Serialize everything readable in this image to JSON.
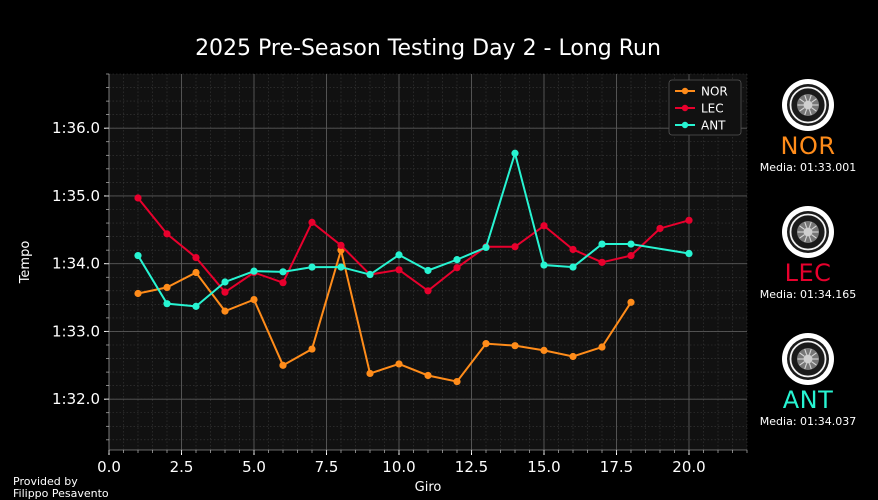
{
  "chart_data": {
    "type": "line",
    "title": "2025 Pre-Season Testing Day 2 - Long Run",
    "xlabel": "Giro",
    "ylabel": "Tempo",
    "xlim": [
      0,
      22
    ],
    "ylim": [
      91.25,
      96.8
    ],
    "x_ticks": [
      0,
      2.5,
      5,
      7.5,
      10,
      12.5,
      15,
      17.5,
      20
    ],
    "x_tick_labels": [
      "0.0",
      "2.5",
      "5.0",
      "7.5",
      "10.0",
      "12.5",
      "15.0",
      "17.5",
      "20.0"
    ],
    "y_ticks": [
      92,
      93,
      94,
      95,
      96
    ],
    "y_tick_labels": [
      "1:32.0",
      "1:33.0",
      "1:34.0",
      "1:35.0",
      "1:36.0"
    ],
    "grid": true,
    "legend_position": "top-right",
    "series": [
      {
        "name": "NOR",
        "color": "#ff8c1a",
        "x": [
          1,
          2,
          3,
          4,
          5,
          6,
          7,
          8,
          9,
          10,
          11,
          12,
          13,
          14,
          15,
          16,
          17,
          18
        ],
        "values": [
          93.56,
          93.65,
          93.87,
          93.3,
          93.47,
          92.5,
          92.74,
          94.2,
          92.38,
          92.52,
          92.35,
          92.26,
          92.82,
          92.79,
          92.72,
          92.63,
          92.77,
          93.43
        ]
      },
      {
        "name": "LEC",
        "color": "#e8002d",
        "x": [
          1,
          2,
          3,
          4,
          5,
          6,
          7,
          8,
          9,
          10,
          11,
          12,
          13,
          14,
          15,
          16,
          17,
          18,
          19,
          20
        ],
        "values": [
          94.97,
          94.44,
          94.09,
          93.58,
          93.87,
          93.72,
          94.61,
          94.27,
          93.84,
          93.91,
          93.6,
          93.94,
          94.25,
          94.25,
          94.56,
          94.21,
          94.02,
          94.12,
          94.52,
          94.64
        ]
      },
      {
        "name": "ANT",
        "color": "#27f4d2",
        "x": [
          1,
          2,
          3,
          4,
          5,
          6,
          7,
          8,
          9,
          10,
          11,
          12,
          13,
          14,
          15,
          16,
          17,
          18,
          20
        ],
        "values": [
          94.12,
          93.41,
          93.37,
          93.73,
          93.89,
          93.88,
          93.95,
          93.95,
          93.84,
          94.13,
          93.9,
          94.06,
          94.24,
          95.63,
          93.98,
          93.95,
          94.29,
          94.29,
          94.15
        ]
      }
    ]
  },
  "drivers": [
    {
      "code": "NOR",
      "avg": "Media: 01:33.001",
      "color": "#ff8c1a"
    },
    {
      "code": "LEC",
      "avg": "Media: 01:34.165",
      "color": "#e8002d"
    },
    {
      "code": "ANT",
      "avg": "Media: 01:34.037",
      "color": "#27f4d2"
    }
  ],
  "tyre": {
    "brand": "PIRELLI",
    "sidewall": "P ZERO",
    "icon": "tyre-icon"
  },
  "credit": {
    "line1": "Provided by",
    "line2": "Filippo Pesavento"
  }
}
